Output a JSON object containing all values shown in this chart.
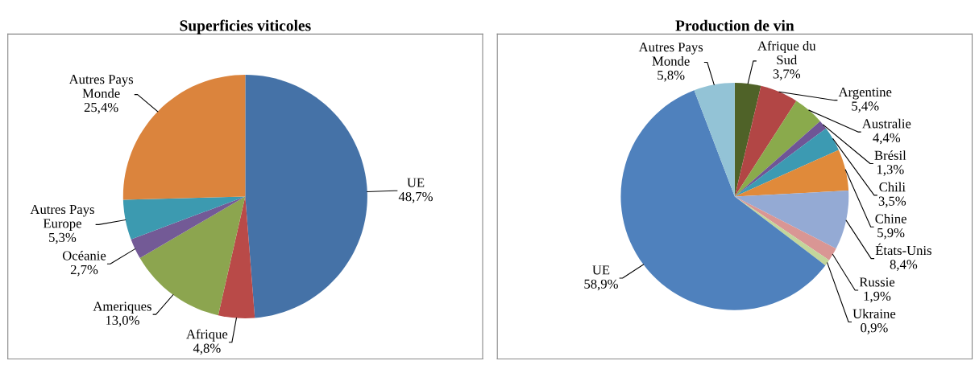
{
  "chart_data": [
    {
      "type": "pie",
      "title": "Superficies viticoles",
      "categories": [
        "UE",
        "Afrique",
        "Ameriques",
        "Océanie",
        "Autres Pays\nEurope",
        "Autres Pays\nMonde"
      ],
      "values": [
        48.7,
        4.8,
        13.0,
        2.7,
        5.3,
        25.4
      ],
      "value_labels": [
        "48,7%",
        "4,8%",
        "13,0%",
        "2,7%",
        "5,3%",
        "25,4%"
      ],
      "colors": [
        "#4572a7",
        "#b94a48",
        "#8ca54f",
        "#735a96",
        "#3c9ab0",
        "#db843d"
      ],
      "legend": false
    },
    {
      "type": "pie",
      "title": "Production de vin",
      "categories": [
        "Afrique du\nSud",
        "Argentine",
        "Australie",
        "Brésil",
        "Chili",
        "Chine",
        "États-Unis",
        "Russie",
        "Ukraine",
        "UE",
        "Autres Pays\nMonde"
      ],
      "values": [
        3.7,
        5.4,
        4.4,
        1.3,
        3.5,
        5.9,
        8.4,
        1.9,
        0.9,
        58.9,
        5.8
      ],
      "value_labels": [
        "3,7%",
        "5,4%",
        "4,4%",
        "1,3%",
        "3,5%",
        "5,9%",
        "8,4%",
        "1,9%",
        "0,9%",
        "58,9%",
        "5,8%"
      ],
      "colors": [
        "#4f6228",
        "#b24645",
        "#8aaa4c",
        "#6f5596",
        "#3c9ab2",
        "#e08a3a",
        "#94aad4",
        "#d99694",
        "#c3d69b",
        "#4f81bd",
        "#93c3d6"
      ],
      "legend": false
    }
  ]
}
